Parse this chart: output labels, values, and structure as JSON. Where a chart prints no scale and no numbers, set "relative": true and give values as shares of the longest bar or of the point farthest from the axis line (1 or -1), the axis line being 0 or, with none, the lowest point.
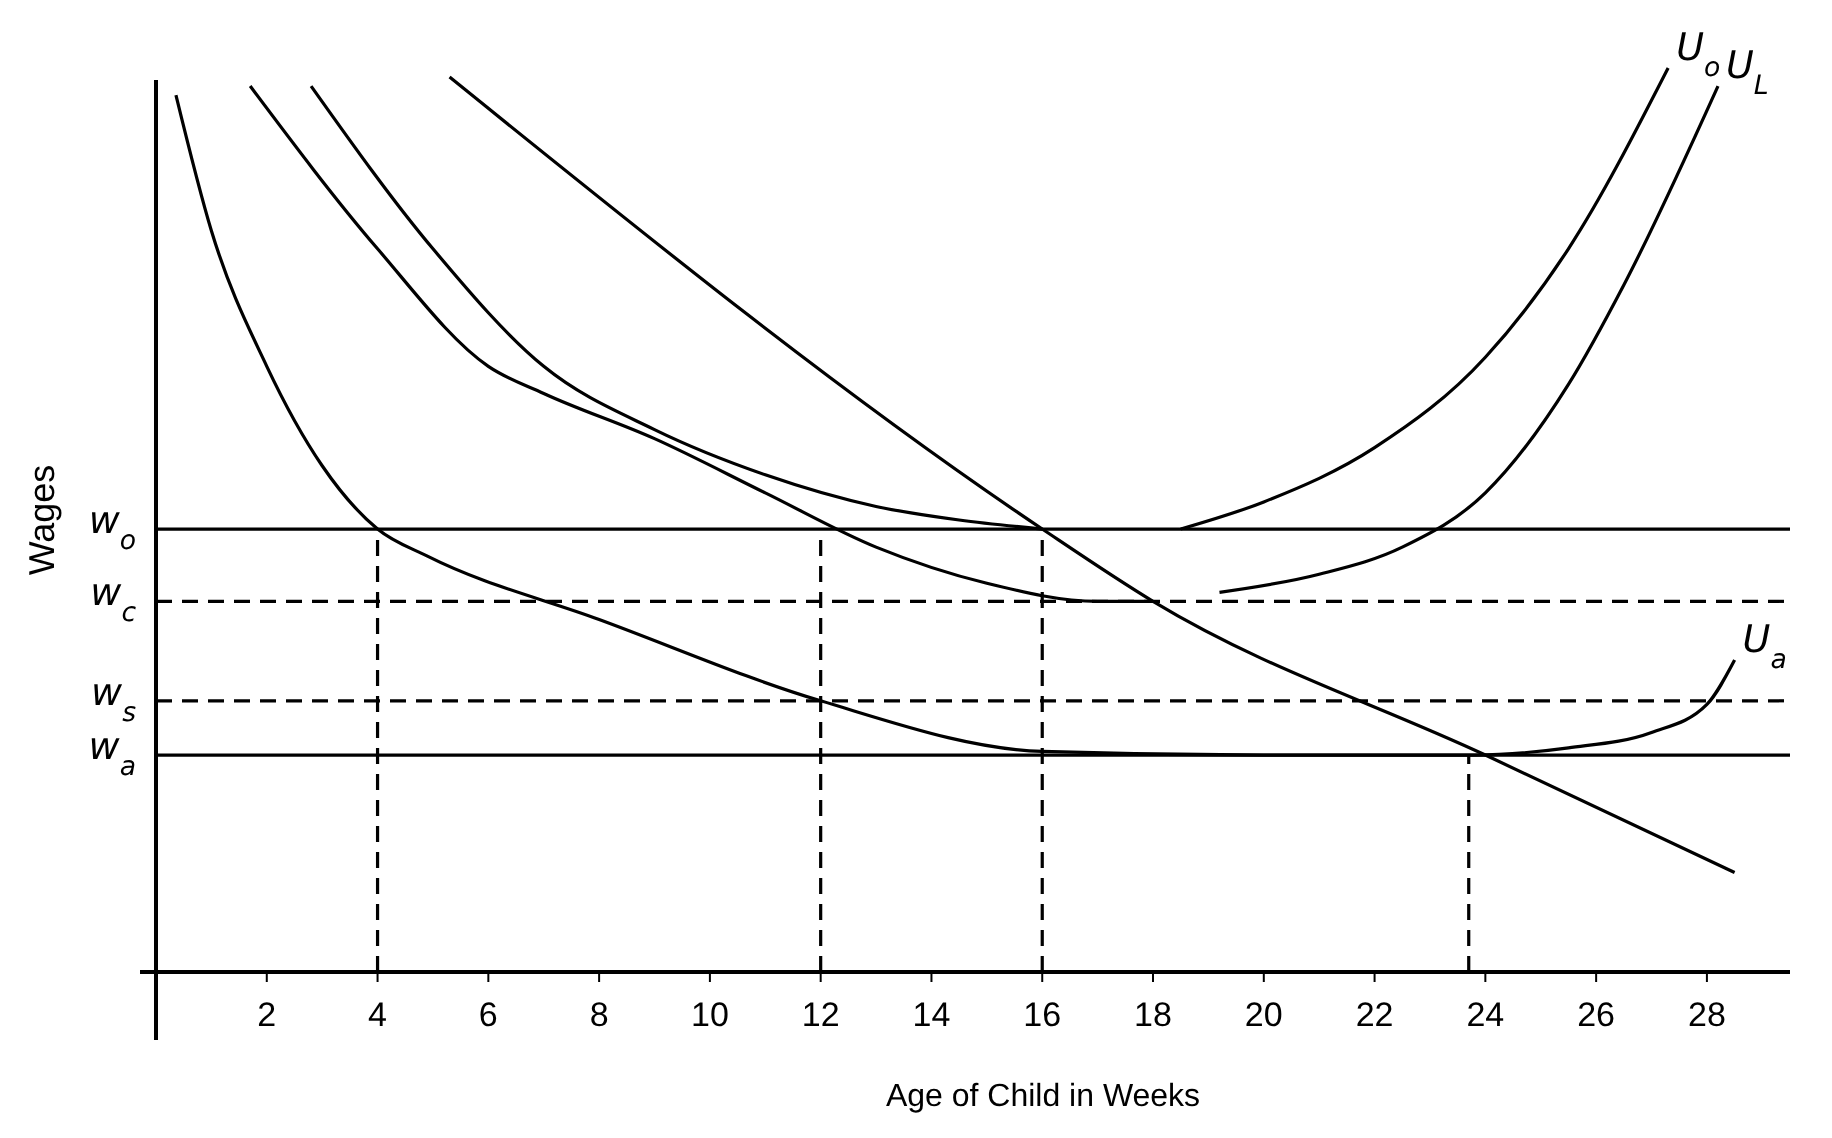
{
  "chart_data": {
    "type": "line",
    "relative": true,
    "xlabel": "Age of Child in Weeks",
    "ylabel": "Wages",
    "xlim": [
      0,
      29.5
    ],
    "xticks": [
      2,
      4,
      6,
      8,
      10,
      12,
      14,
      16,
      18,
      20,
      22,
      24,
      26,
      28
    ],
    "grid": false,
    "series": [
      {
        "name": "U$_{o}$",
        "color": "#000000",
        "x": [
          2.8,
          5,
          7,
          9,
          11,
          13,
          14.5,
          16,
          16.3,
          18.5,
          20,
          22,
          24,
          25.5,
          27.3
        ],
        "values": [
          0.98,
          0.8,
          0.67,
          0.6,
          0.55,
          0.515,
          0.5,
          0.49,
          null,
          0.49,
          0.52,
          0.58,
          0.68,
          0.8,
          1.0
        ]
      },
      {
        "name": "U$_{L}$",
        "color": "#000000",
        "x": [
          1.7,
          4,
          6,
          7,
          9,
          11,
          13,
          15,
          17,
          18,
          18.2,
          19.2,
          21,
          22.5,
          24,
          25.5,
          26.5,
          28.2
        ],
        "values": [
          0.98,
          0.8,
          0.67,
          0.64,
          0.59,
          0.53,
          0.47,
          0.43,
          0.41,
          0.41,
          null,
          0.42,
          0.44,
          0.47,
          0.53,
          0.65,
          0.76,
          0.98
        ]
      },
      {
        "name": "U$_{a}$",
        "color": "#000000",
        "x": [
          0.36,
          1,
          2,
          3,
          4,
          4.9,
          8,
          12,
          16,
          20,
          23.8,
          25.5,
          27,
          28,
          28.5
        ],
        "values": [
          0.97,
          0.82,
          0.67,
          0.56,
          0.49,
          0.46,
          0.39,
          0.3,
          0.244,
          0.24,
          0.24,
          0.248,
          0.265,
          0.296,
          0.345
        ]
      },
      {
        "color": "#000000",
        "x": [
          5.3,
          16,
          18,
          24,
          28.5
        ],
        "values": [
          0.99,
          0.49,
          0.41,
          0.24,
          0.11
        ]
      },
      {
        "color": "#000000",
        "line_style": "dashed",
        "x": [
          4,
          4
        ],
        "values": [
          0,
          0.49
        ]
      },
      {
        "color": "#000000",
        "line_style": "dashed",
        "x": [
          12,
          12
        ],
        "values": [
          0,
          0.49
        ]
      },
      {
        "color": "#000000",
        "line_style": "dashed",
        "x": [
          16,
          16
        ],
        "values": [
          0,
          0.49
        ]
      },
      {
        "color": "#000000",
        "line_style": "dashed",
        "x": [
          23.7,
          23.7
        ],
        "values": [
          0,
          0.24
        ]
      }
    ],
    "ref_lines": [
      {
        "axis": "y",
        "value": 0.49,
        "label": "w$_{o}$",
        "line_style": "solid"
      },
      {
        "axis": "y",
        "value": 0.41,
        "label": "w$_{c}$",
        "line_style": "dashed"
      },
      {
        "axis": "y",
        "value": 0.3,
        "label": "w$_{s}$",
        "line_style": "dashed"
      },
      {
        "axis": "y",
        "value": 0.24,
        "label": "w$_{a}$",
        "line_style": "solid"
      }
    ]
  }
}
